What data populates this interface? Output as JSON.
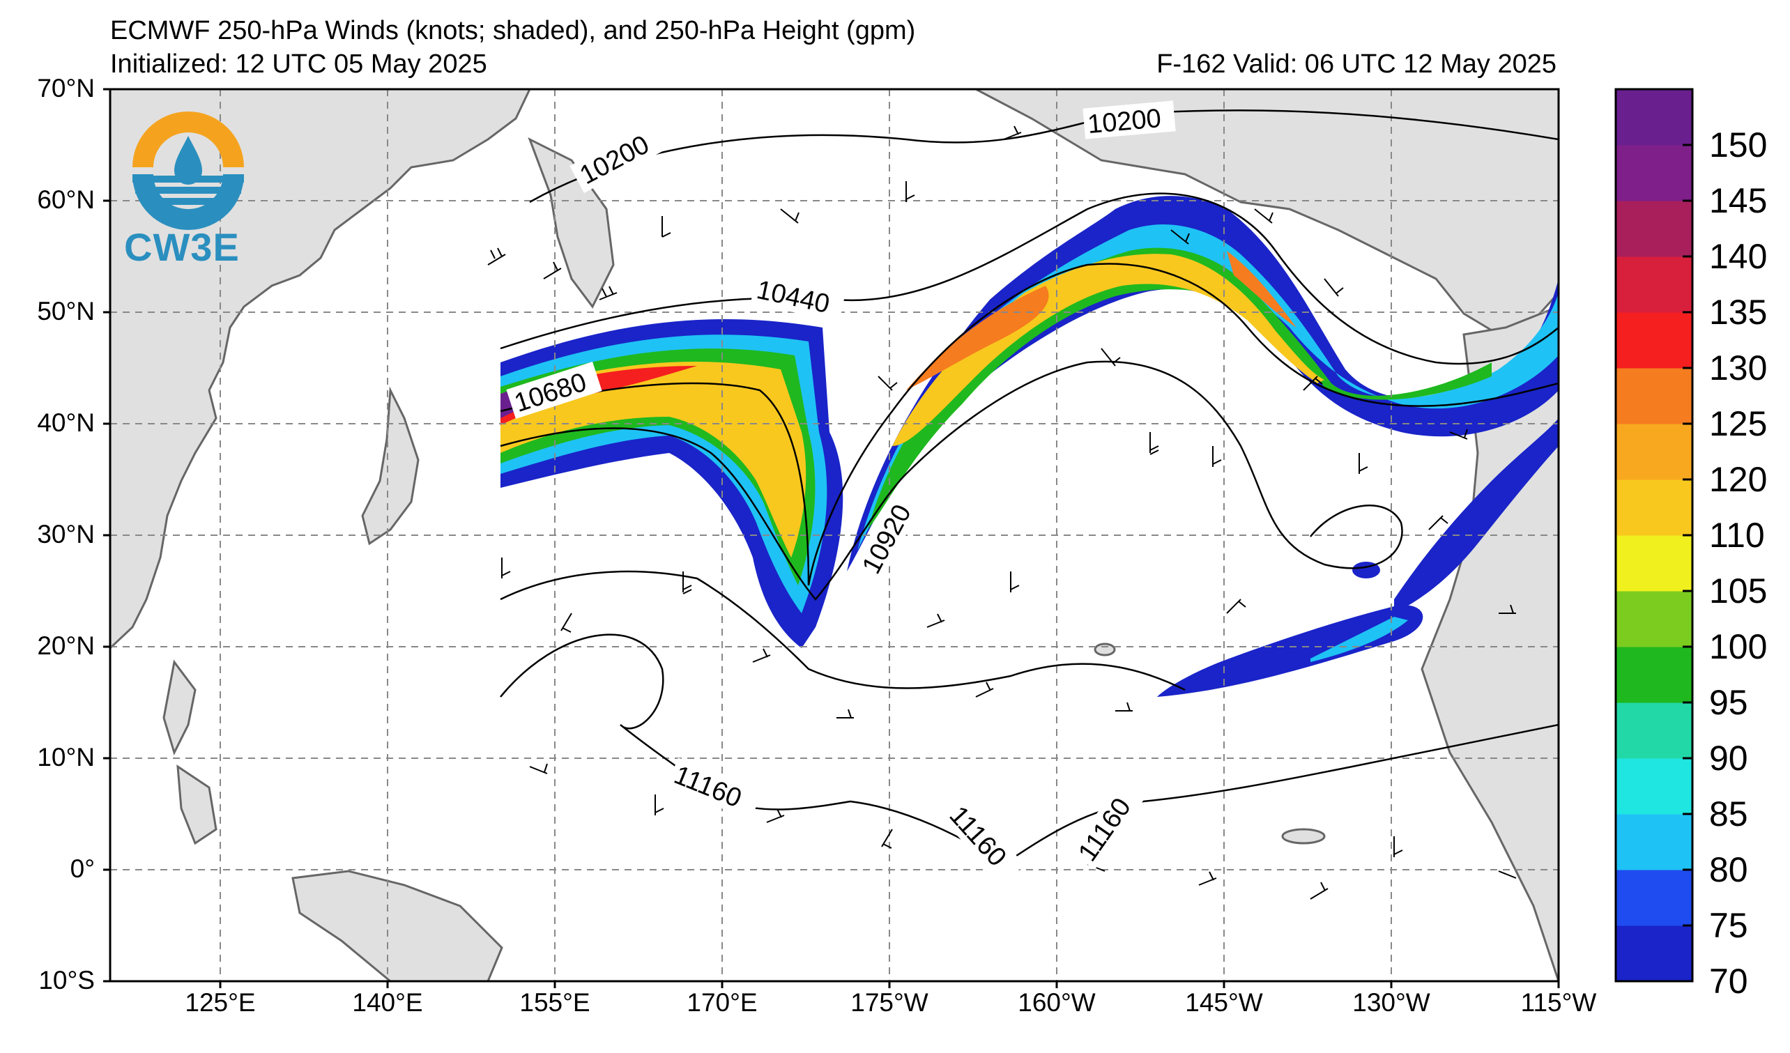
{
  "title": {
    "line1": "ECMWF 250-hPa Winds (knots; shaded), and 250-hPa Height (gpm)",
    "line2": "Initialized: 12 UTC 05 May 2025",
    "valid": "F-162  Valid: 06 UTC 12 May 2025"
  },
  "logo": {
    "text": "CW3E"
  },
  "axes": {
    "lat_labels": [
      "70°N",
      "60°N",
      "50°N",
      "40°N",
      "30°N",
      "20°N",
      "10°N",
      "0°",
      "10°S"
    ],
    "lon_labels": [
      "125°E",
      "140°E",
      "155°E",
      "170°E",
      "175°W",
      "160°W",
      "145°W",
      "130°W",
      "115°W"
    ]
  },
  "contours": {
    "labels": [
      "10200",
      "10200",
      "10440",
      "10680",
      "10920",
      "11160",
      "11160",
      "11160"
    ]
  },
  "colorbar": {
    "ticks": [
      "70",
      "75",
      "80",
      "85",
      "90",
      "95",
      "100",
      "105",
      "110",
      "120",
      "125",
      "130",
      "135",
      "140",
      "145",
      "150"
    ],
    "colors": [
      "#1a24c8",
      "#1f4cf0",
      "#1fc2f5",
      "#1fe6e0",
      "#22d8a6",
      "#1fb81f",
      "#7ccc1f",
      "#f0f01f",
      "#f8c81f",
      "#f8a81f",
      "#f57c1f",
      "#f51f1f",
      "#d81f3c",
      "#a81f5c",
      "#7e1f8a",
      "#6a1f8f"
    ]
  },
  "colors": {
    "land": "#e0e0e0",
    "coast": "#666666",
    "grid": "#888888"
  }
}
